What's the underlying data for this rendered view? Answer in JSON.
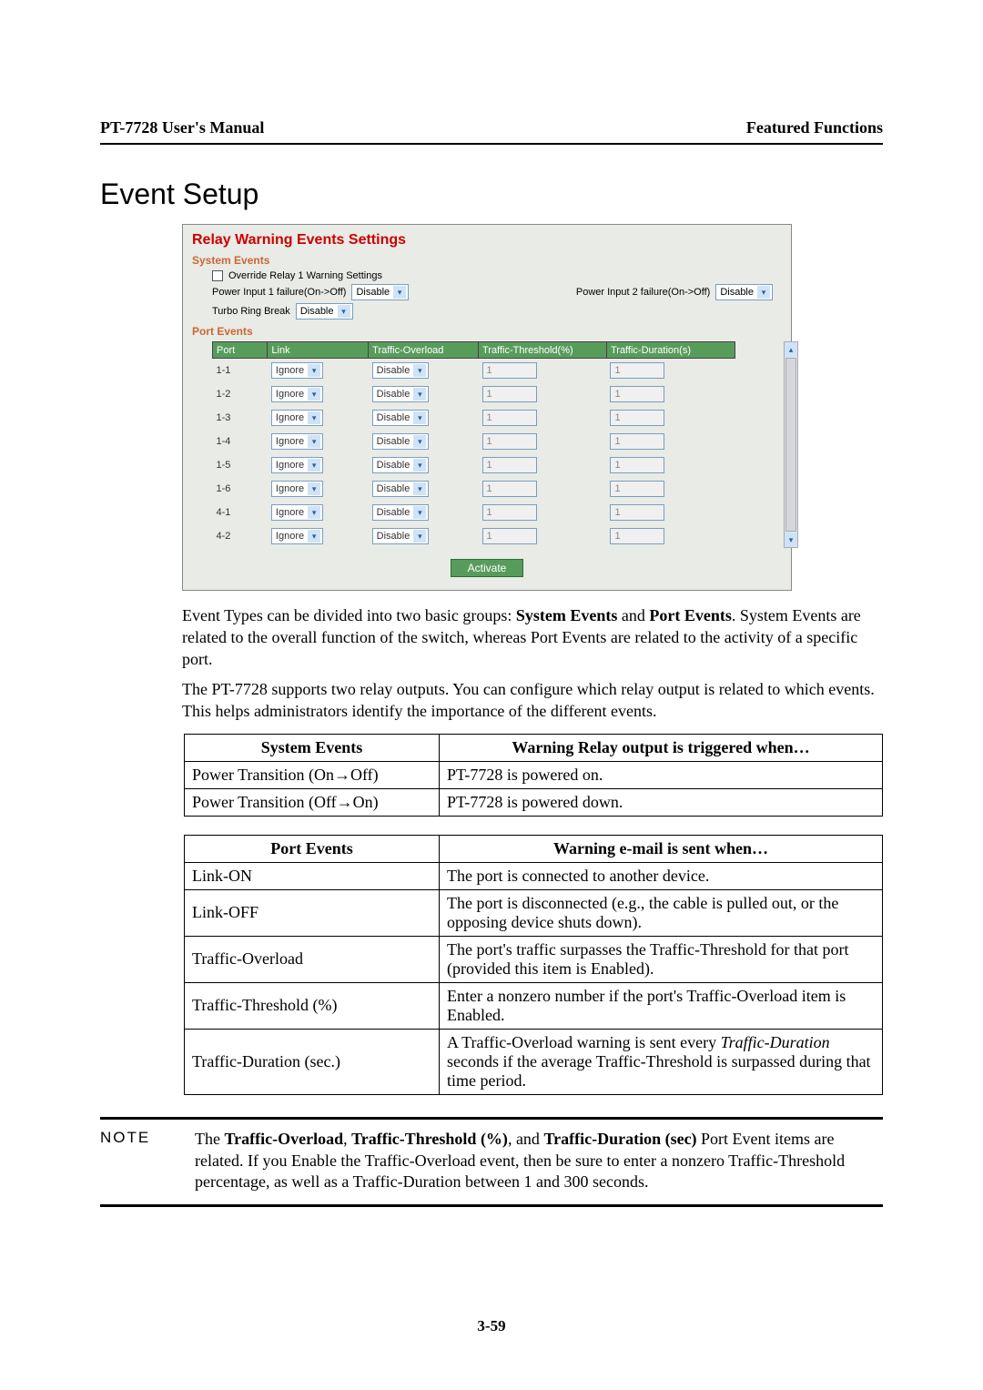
{
  "header": {
    "left": "PT-7728 User's Manual",
    "right": "Featured Functions"
  },
  "heading": "Event Setup",
  "screenshot": {
    "title": "Relay Warning Events Settings",
    "system_events_label": "System Events",
    "override_label": "Override Relay 1 Warning Settings",
    "pi1_label": "Power Input 1 failure(On->Off)",
    "pi1_value": "Disable",
    "pi2_label": "Power Input 2 failure(On->Off)",
    "pi2_value": "Disable",
    "turbo_label": "Turbo Ring Break",
    "turbo_value": "Disable",
    "port_events_label": "Port Events",
    "table": {
      "headers": [
        "Port",
        "Link",
        "Traffic-Overload",
        "Traffic-Threshold(%)",
        "Traffic-Duration(s)"
      ],
      "rows": [
        {
          "port": "1-1",
          "link": "Ignore",
          "overload": "Disable",
          "thresh": "1",
          "dur": "1"
        },
        {
          "port": "1-2",
          "link": "Ignore",
          "overload": "Disable",
          "thresh": "1",
          "dur": "1"
        },
        {
          "port": "1-3",
          "link": "Ignore",
          "overload": "Disable",
          "thresh": "1",
          "dur": "1"
        },
        {
          "port": "1-4",
          "link": "Ignore",
          "overload": "Disable",
          "thresh": "1",
          "dur": "1"
        },
        {
          "port": "1-5",
          "link": "Ignore",
          "overload": "Disable",
          "thresh": "1",
          "dur": "1"
        },
        {
          "port": "1-6",
          "link": "Ignore",
          "overload": "Disable",
          "thresh": "1",
          "dur": "1"
        },
        {
          "port": "4-1",
          "link": "Ignore",
          "overload": "Disable",
          "thresh": "1",
          "dur": "1"
        },
        {
          "port": "4-2",
          "link": "Ignore",
          "overload": "Disable",
          "thresh": "1",
          "dur": "1"
        }
      ]
    },
    "activate": "Activate"
  },
  "para1_a": "Event Types can be divided into two basic groups: ",
  "para1_b": "System Events",
  "para1_c": " and ",
  "para1_d": "Port Events",
  "para1_e": ". System Events are related to the overall function of the switch, whereas Port Events are related to the activity of a specific port.",
  "para2": "The PT-7728 supports two relay outputs. You can configure which relay output is related to which events. This helps administrators identify the importance of the different events.",
  "table1": {
    "h1": "System Events",
    "h2": "Warning Relay output is triggered when…",
    "rows": [
      {
        "c1": "Power Transition (On→Off)",
        "c2": "PT-7728 is powered on."
      },
      {
        "c1": "Power Transition (Off→On)",
        "c2": "PT-7728 is powered down."
      }
    ]
  },
  "table2": {
    "h1": "Port Events",
    "h2": "Warning e-mail is sent when…",
    "rows": [
      {
        "c1": "Link-ON",
        "c2": "The port is connected to another device."
      },
      {
        "c1": "Link-OFF",
        "c2": "The port is disconnected (e.g., the cable is pulled out, or the opposing device shuts down)."
      },
      {
        "c1": "Traffic-Overload",
        "c2": "The port's traffic surpasses the Traffic-Threshold for that port (provided this item is Enabled)."
      },
      {
        "c1": "Traffic-Threshold (%)",
        "c2": "Enter a nonzero number if the port's Traffic-Overload item is Enabled."
      },
      {
        "c1": "Traffic-Duration (sec.)",
        "c2_a": "A Traffic-Overload warning is sent every ",
        "c2_b": "Traffic-Duration",
        "c2_c": " seconds if the average Traffic-Threshold is surpassed during that time period."
      }
    ]
  },
  "note": {
    "label": "NOTE",
    "a": "The ",
    "b": "Traffic-Overload",
    "c": ", ",
    "d": "Traffic-Threshold (%)",
    "e": ", and ",
    "f": "Traffic-Duration (sec)",
    "g": " Port Event items are related. If you Enable the Traffic-Overload event, then be sure to enter a nonzero Traffic-Threshold percentage, as well as a Traffic-Duration between 1 and 300 seconds."
  },
  "page_num": "3-59"
}
